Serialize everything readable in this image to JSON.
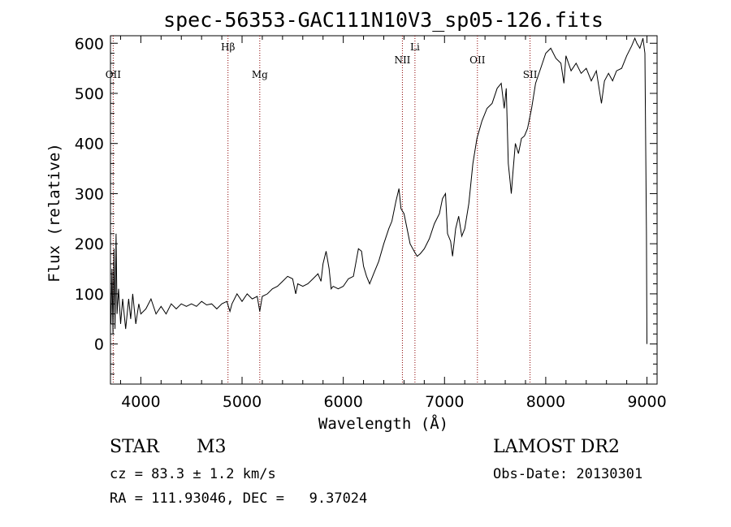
{
  "chart_data": {
    "type": "line",
    "title": "spec-56353-GAC111N10V3_sp05-126.fits",
    "xlabel": "Wavelength (Å)",
    "ylabel": "Flux (relative)",
    "xlim": [
      3700,
      9100
    ],
    "ylim": [
      -80,
      615
    ],
    "x_ticks": [
      4000,
      5000,
      6000,
      7000,
      8000,
      9000
    ],
    "y_ticks": [
      0,
      100,
      200,
      300,
      400,
      500,
      600
    ],
    "grid": false,
    "spectral_lines": [
      {
        "label": "OII",
        "x": 3727,
        "label_row": "low"
      },
      {
        "label": "Hβ",
        "x": 4861,
        "label_row": "high"
      },
      {
        "label": "Mg",
        "x": 5175,
        "label_row": "low"
      },
      {
        "label": "NII",
        "x": 6584,
        "label_row": "mid"
      },
      {
        "label": "Li",
        "x": 6708,
        "label_row": "high"
      },
      {
        "label": "OII",
        "x": 7325,
        "label_row": "mid"
      },
      {
        "label": "SII",
        "x": 7845,
        "label_row": "low"
      }
    ],
    "series": [
      {
        "color": "#000000",
        "points": [
          [
            3705,
            40
          ],
          [
            3715,
            150
          ],
          [
            3725,
            20
          ],
          [
            3735,
            190
          ],
          [
            3745,
            30
          ],
          [
            3755,
            220
          ],
          [
            3765,
            60
          ],
          [
            3780,
            110
          ],
          [
            3800,
            40
          ],
          [
            3820,
            90
          ],
          [
            3850,
            30
          ],
          [
            3880,
            90
          ],
          [
            3900,
            50
          ],
          [
            3920,
            100
          ],
          [
            3950,
            40
          ],
          [
            3980,
            80
          ],
          [
            4000,
            60
          ],
          [
            4050,
            70
          ],
          [
            4100,
            90
          ],
          [
            4150,
            60
          ],
          [
            4200,
            75
          ],
          [
            4250,
            60
          ],
          [
            4300,
            80
          ],
          [
            4350,
            70
          ],
          [
            4400,
            80
          ],
          [
            4450,
            75
          ],
          [
            4500,
            80
          ],
          [
            4550,
            75
          ],
          [
            4600,
            85
          ],
          [
            4650,
            78
          ],
          [
            4700,
            80
          ],
          [
            4750,
            70
          ],
          [
            4800,
            80
          ],
          [
            4850,
            85
          ],
          [
            4880,
            65
          ],
          [
            4900,
            80
          ],
          [
            4950,
            100
          ],
          [
            5000,
            85
          ],
          [
            5050,
            100
          ],
          [
            5100,
            90
          ],
          [
            5150,
            95
          ],
          [
            5175,
            65
          ],
          [
            5200,
            95
          ],
          [
            5250,
            100
          ],
          [
            5300,
            110
          ],
          [
            5350,
            115
          ],
          [
            5400,
            125
          ],
          [
            5450,
            135
          ],
          [
            5500,
            130
          ],
          [
            5530,
            100
          ],
          [
            5550,
            120
          ],
          [
            5600,
            115
          ],
          [
            5650,
            120
          ],
          [
            5700,
            130
          ],
          [
            5750,
            140
          ],
          [
            5780,
            125
          ],
          [
            5800,
            160
          ],
          [
            5830,
            185
          ],
          [
            5860,
            150
          ],
          [
            5880,
            110
          ],
          [
            5900,
            115
          ],
          [
            5950,
            110
          ],
          [
            6000,
            115
          ],
          [
            6050,
            130
          ],
          [
            6100,
            135
          ],
          [
            6150,
            190
          ],
          [
            6180,
            185
          ],
          [
            6200,
            155
          ],
          [
            6230,
            135
          ],
          [
            6260,
            120
          ],
          [
            6300,
            140
          ],
          [
            6350,
            165
          ],
          [
            6400,
            200
          ],
          [
            6450,
            230
          ],
          [
            6480,
            245
          ],
          [
            6520,
            285
          ],
          [
            6550,
            310
          ],
          [
            6570,
            270
          ],
          [
            6600,
            260
          ],
          [
            6630,
            230
          ],
          [
            6660,
            200
          ],
          [
            6700,
            185
          ],
          [
            6730,
            175
          ],
          [
            6760,
            180
          ],
          [
            6800,
            190
          ],
          [
            6850,
            210
          ],
          [
            6900,
            240
          ],
          [
            6950,
            260
          ],
          [
            6980,
            290
          ],
          [
            7010,
            300
          ],
          [
            7030,
            220
          ],
          [
            7060,
            205
          ],
          [
            7080,
            175
          ],
          [
            7110,
            230
          ],
          [
            7140,
            255
          ],
          [
            7170,
            215
          ],
          [
            7200,
            230
          ],
          [
            7240,
            280
          ],
          [
            7280,
            360
          ],
          [
            7320,
            410
          ],
          [
            7370,
            445
          ],
          [
            7420,
            470
          ],
          [
            7470,
            480
          ],
          [
            7520,
            510
          ],
          [
            7560,
            520
          ],
          [
            7590,
            470
          ],
          [
            7610,
            510
          ],
          [
            7630,
            360
          ],
          [
            7645,
            330
          ],
          [
            7660,
            300
          ],
          [
            7675,
            340
          ],
          [
            7700,
            400
          ],
          [
            7730,
            380
          ],
          [
            7760,
            410
          ],
          [
            7790,
            415
          ],
          [
            7820,
            430
          ],
          [
            7860,
            470
          ],
          [
            7900,
            520
          ],
          [
            7950,
            550
          ],
          [
            8000,
            580
          ],
          [
            8050,
            590
          ],
          [
            8100,
            570
          ],
          [
            8150,
            560
          ],
          [
            8180,
            520
          ],
          [
            8200,
            575
          ],
          [
            8250,
            545
          ],
          [
            8300,
            560
          ],
          [
            8350,
            540
          ],
          [
            8400,
            550
          ],
          [
            8450,
            525
          ],
          [
            8500,
            545
          ],
          [
            8550,
            480
          ],
          [
            8580,
            525
          ],
          [
            8620,
            540
          ],
          [
            8660,
            525
          ],
          [
            8700,
            545
          ],
          [
            8750,
            550
          ],
          [
            8800,
            575
          ],
          [
            8850,
            595
          ],
          [
            8880,
            610
          ],
          [
            8900,
            600
          ],
          [
            8930,
            590
          ],
          [
            8960,
            610
          ],
          [
            8980,
            580
          ],
          [
            8995,
            220
          ],
          [
            9000,
            0
          ]
        ]
      }
    ]
  },
  "info": {
    "object_class": "STAR",
    "subclass": "M3",
    "survey": "LAMOST DR2",
    "cz": "cz = 83.3 ± 1.2 km/s",
    "obs_date": "Obs-Date: 20130301",
    "coords": "RA = 111.93046, DEC =   9.37024"
  }
}
